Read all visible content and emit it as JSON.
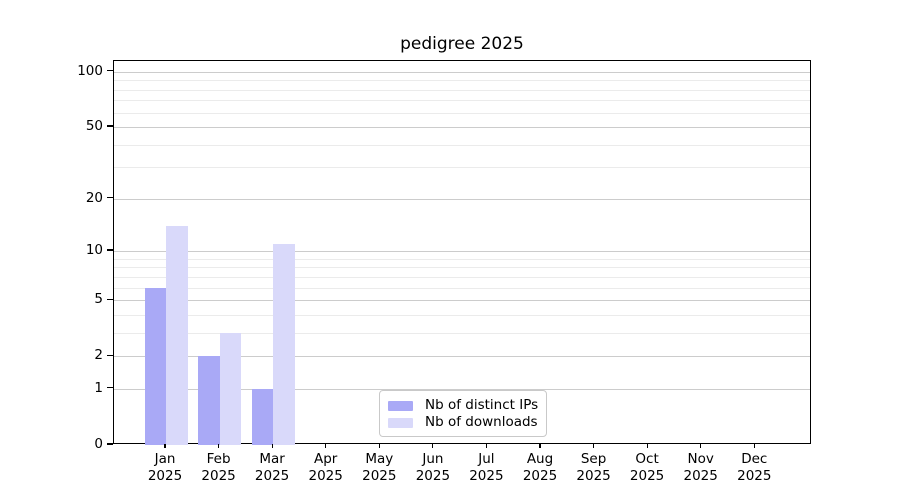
{
  "chart_data": {
    "type": "bar",
    "title": "pedigree 2025",
    "x_categories": [
      "Jan",
      "Feb",
      "Mar",
      "Apr",
      "May",
      "Jun",
      "Jul",
      "Aug",
      "Sep",
      "Oct",
      "Nov",
      "Dec"
    ],
    "x_year_label": "2025",
    "series": [
      {
        "name": "Nb of distinct IPs",
        "key": "distinct-ips",
        "color": "#a9a9f6",
        "values": [
          6,
          2,
          1,
          0,
          0,
          0,
          0,
          0,
          0,
          0,
          0,
          0
        ]
      },
      {
        "name": "Nb of downloads",
        "key": "downloads",
        "color": "#d9d9fa",
        "values": [
          14,
          3,
          11,
          0,
          0,
          0,
          0,
          0,
          0,
          0,
          0,
          0
        ]
      }
    ],
    "y_axis": {
      "scale": "log1p",
      "major_ticks": [
        0,
        1,
        2,
        5,
        10,
        20,
        50,
        100
      ],
      "minor_gridlines": [
        3,
        4,
        6,
        7,
        8,
        9,
        30,
        40,
        60,
        70,
        80,
        90
      ],
      "range": [
        0,
        100
      ]
    },
    "legend_position": "lower center",
    "grid": true,
    "colors": {
      "major_grid": "#cccccc",
      "minor_grid": "#ebebeb",
      "spine": "#000000"
    }
  }
}
